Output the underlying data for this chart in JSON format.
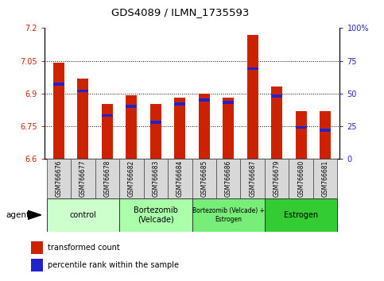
{
  "title": "GDS4089 / ILMN_1735593",
  "samples": [
    "GSM766676",
    "GSM766677",
    "GSM766678",
    "GSM766682",
    "GSM766683",
    "GSM766684",
    "GSM766685",
    "GSM766686",
    "GSM766687",
    "GSM766679",
    "GSM766680",
    "GSM766681"
  ],
  "red_values": [
    7.04,
    6.97,
    6.85,
    6.89,
    6.85,
    6.88,
    6.9,
    6.88,
    7.17,
    6.93,
    6.82,
    6.82
  ],
  "blue_values": [
    57,
    52,
    33,
    40,
    28,
    42,
    45,
    43,
    69,
    48,
    24,
    22
  ],
  "ymin": 6.6,
  "ymax": 7.2,
  "yticks": [
    6.6,
    6.75,
    6.9,
    7.05,
    7.2
  ],
  "ytick_labels": [
    "6.6",
    "6.75",
    "6.9",
    "7.05",
    "7.2"
  ],
  "y2min": 0,
  "y2max": 100,
  "y2ticks": [
    0,
    25,
    50,
    75,
    100
  ],
  "y2tick_labels": [
    "0",
    "25",
    "50",
    "75",
    "100%"
  ],
  "bar_width": 0.45,
  "red_color": "#cc2200",
  "blue_color": "#2222cc",
  "groups": [
    {
      "label": "control",
      "start": 0,
      "end": 2,
      "color": "#ccffcc"
    },
    {
      "label": "Bortezomib\n(Velcade)",
      "start": 3,
      "end": 5,
      "color": "#aaffaa"
    },
    {
      "label": "Bortezomib (Velcade) +\nEstrogen",
      "start": 6,
      "end": 8,
      "color": "#77ee77"
    },
    {
      "label": "Estrogen",
      "start": 9,
      "end": 11,
      "color": "#33cc33"
    }
  ],
  "legend_red": "transformed count",
  "legend_blue": "percentile rank within the sample",
  "agent_label": "agent",
  "xlim_left": -0.6,
  "xlim_right": 11.6
}
